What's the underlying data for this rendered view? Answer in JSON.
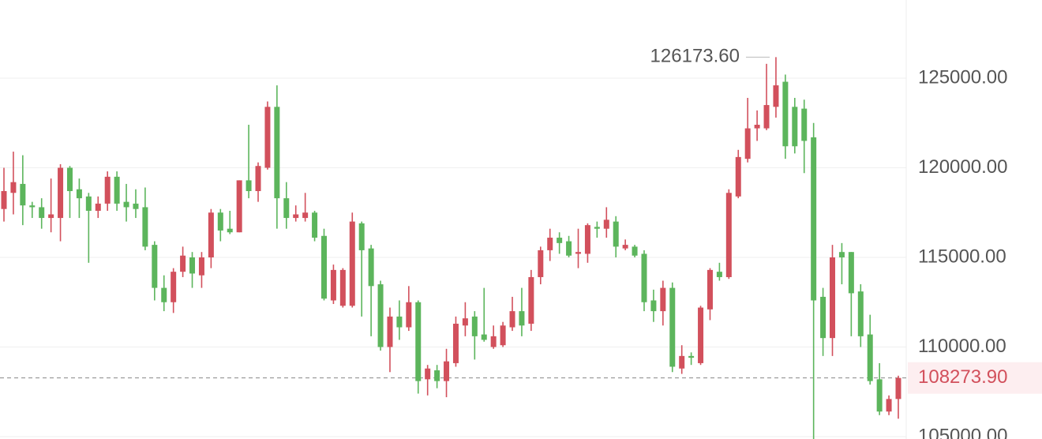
{
  "chart_data": {
    "type": "candlestick",
    "up_color": "#d2505c",
    "down_color": "#5cb55c",
    "ylim": [
      104868,
      129361
    ],
    "yticks": [
      {
        "value": 105000,
        "label": "105000.00"
      },
      {
        "value": 110000,
        "label": "110000.00"
      },
      {
        "value": 115000,
        "label": "115000.00"
      },
      {
        "value": 120000,
        "label": "120000.00"
      },
      {
        "value": 125000,
        "label": "125000.00"
      }
    ],
    "grid": true,
    "last_price": {
      "value": 108273.9,
      "label": "108273.90"
    },
    "max_label": {
      "value": 126173.6,
      "label": "126173.60"
    },
    "open": [
      117700,
      118600,
      119100,
      117900,
      117800,
      117200,
      117200,
      120000,
      118800,
      118400,
      117600,
      118000,
      119500,
      118100,
      118000,
      117800,
      115700,
      113300,
      112500,
      114200,
      115000,
      114000,
      115000,
      117500,
      116600,
      116400,
      119300,
      118700,
      120000,
      123400,
      118300,
      117200,
      117200,
      117500,
      116200,
      112600,
      112300,
      112300,
      116900,
      115500,
      113500,
      110000,
      111700,
      111100,
      112500,
      108200,
      108700,
      108100,
      109100,
      111200,
      111700,
      110700,
      110000,
      110100,
      111100,
      112000,
      111300,
      113900,
      115400,
      116100,
      115900,
      115200,
      115200,
      116700,
      116600,
      117000,
      115500,
      115600,
      115200,
      112600,
      112000,
      113300,
      108800,
      109500,
      109100,
      112100,
      114200,
      113900,
      118400,
      120500,
      122200,
      122200,
      123400,
      124800,
      123400,
      123300,
      121700,
      112800,
      110500,
      115300,
      115300,
      113100,
      110700,
      108200,
      106400,
      107100
    ],
    "high": [
      120000,
      120900,
      120700,
      118100,
      118300,
      119400,
      120200,
      120100,
      119400,
      118600,
      118400,
      119800,
      119800,
      119100,
      118800,
      118900,
      115900,
      114000,
      114400,
      115600,
      115300,
      115300,
      117700,
      117700,
      117600,
      119300,
      122400,
      120300,
      123700,
      124600,
      119200,
      117900,
      118600,
      117600,
      116600,
      114600,
      114400,
      117500,
      117000,
      115700,
      113700,
      112200,
      112600,
      113400,
      112600,
      109000,
      109000,
      109900,
      111700,
      112500,
      112000,
      113300,
      111200,
      111400,
      112800,
      113300,
      114300,
      115600,
      116600,
      116400,
      116200,
      116600,
      116900,
      117000,
      117800,
      117300,
      116000,
      115700,
      115400,
      113200,
      113700,
      113600,
      110100,
      109700,
      112300,
      114400,
      114700,
      118800,
      121000,
      123900,
      123200,
      125800,
      126173.6,
      125200,
      123900,
      123800,
      122500,
      113300,
      115700,
      115800,
      115300,
      113500,
      111800,
      109100,
      107300,
      108400
    ],
    "low": [
      117000,
      117400,
      116800,
      117200,
      116600,
      116400,
      115900,
      117200,
      117200,
      114700,
      117200,
      117600,
      117600,
      117000,
      117200,
      115400,
      112600,
      112000,
      111900,
      113900,
      113300,
      113300,
      114400,
      115900,
      116300,
      116400,
      118300,
      118100,
      119900,
      116600,
      116600,
      117000,
      117000,
      115900,
      112600,
      112400,
      112200,
      112200,
      111700,
      110600,
      109800,
      108600,
      110400,
      110900,
      107400,
      107300,
      107700,
      107200,
      108900,
      110600,
      109300,
      110300,
      109900,
      110000,
      110900,
      110600,
      110900,
      113500,
      114800,
      115200,
      115000,
      114400,
      114700,
      116100,
      116100,
      115000,
      115400,
      115000,
      112000,
      111400,
      111200,
      108600,
      108500,
      109000,
      109000,
      111500,
      113700,
      113800,
      118300,
      120300,
      121500,
      122100,
      122800,
      120500,
      120800,
      119700,
      104500,
      109500,
      109500,
      113500,
      110600,
      110000,
      107900,
      106200,
      106200,
      106000
    ],
    "close": [
      118700,
      119200,
      117900,
      117800,
      117200,
      117400,
      120000,
      118700,
      118300,
      117600,
      118000,
      119500,
      118000,
      117800,
      117700,
      115600,
      113300,
      112500,
      114200,
      115100,
      114100,
      115000,
      117500,
      116500,
      116400,
      119300,
      118700,
      120100,
      123400,
      118300,
      117200,
      117400,
      117500,
      116100,
      112700,
      114300,
      114300,
      117000,
      115400,
      113400,
      110000,
      111700,
      111100,
      112500,
      108100,
      108800,
      108100,
      109200,
      111300,
      111600,
      110600,
      110400,
      110600,
      111200,
      112000,
      111200,
      113900,
      115400,
      116100,
      115800,
      115100,
      115300,
      116800,
      116600,
      117100,
      115600,
      115700,
      115100,
      112500,
      112000,
      113300,
      108900,
      109500,
      109400,
      112200,
      114300,
      113900,
      118600,
      120600,
      122200,
      122400,
      123500,
      124600,
      121200,
      121200,
      121500,
      112600,
      110500,
      115000,
      115000,
      113000,
      110600,
      108100,
      106400,
      107100,
      108273.9
    ]
  }
}
